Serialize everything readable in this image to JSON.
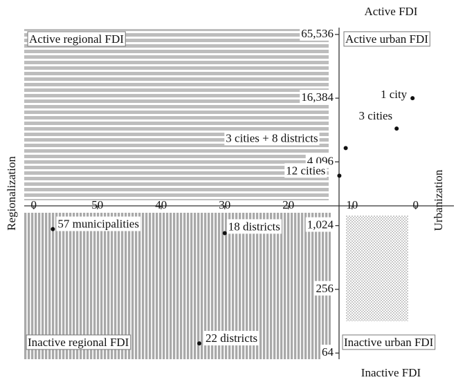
{
  "chart_data": {
    "type": "scatter",
    "quadrant_labels": [
      "Active regional FDI",
      "Active urban FDI",
      "Inactive regional FDI",
      "Inactive urban FDI"
    ],
    "top_label": "Active FDI",
    "bottom_label": "Inactive FDI",
    "xlabel": "Regionalization",
    "ylabel": "Urbanization",
    "x": [
      0.5,
      3,
      11,
      12,
      57,
      30,
      34
    ],
    "values": [
      16384,
      8450,
      5530,
      3030,
      950,
      870,
      79
    ],
    "labels": [
      "1 city",
      "3 cities",
      "3 cities + 8 districts",
      "12 cities",
      "57 municipalities",
      "18 districts",
      "22 districts"
    ],
    "color": "#111111",
    "xlim": [
      61.5,
      -6
    ],
    "xticks": [
      {
        "value": 60,
        "label": "0"
      },
      50,
      40,
      30,
      20,
      10,
      0
    ],
    "ylim": [
      56,
      76000
    ],
    "yscale": "log",
    "yticks": [
      {
        "value": 64,
        "label": "64"
      },
      {
        "value": 256,
        "label": "256"
      },
      {
        "value": 1024,
        "label": "1,024"
      },
      {
        "value": 4096,
        "label": "4,096"
      },
      {
        "value": 16384,
        "label": "16,384"
      },
      {
        "value": 65536,
        "label": "65,536"
      }
    ]
  }
}
